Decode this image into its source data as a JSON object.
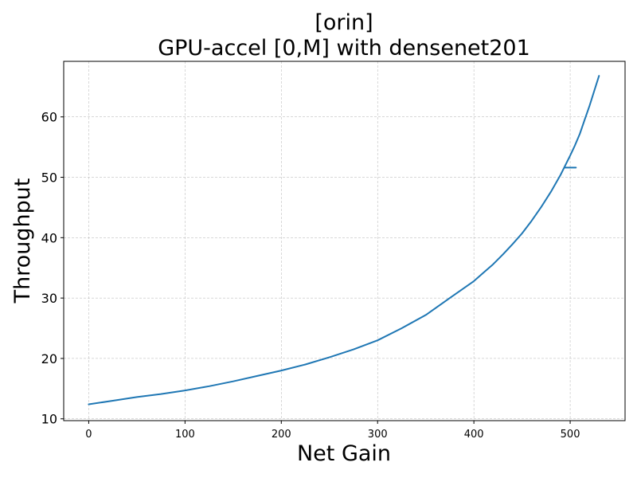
{
  "chart_data": {
    "type": "line",
    "title_line1": "[orin]",
    "title_line2": "GPU-accel [0,M] with densenet201",
    "xlabel": "Net Gain",
    "ylabel": "Throughput",
    "xlim": [
      -26,
      557
    ],
    "ylim": [
      9.7,
      69.2
    ],
    "xticks": [
      0,
      100,
      200,
      300,
      400,
      500
    ],
    "yticks": [
      10,
      20,
      30,
      40,
      50,
      60
    ],
    "grid": true,
    "line_color": "#1f77b4",
    "series": [
      {
        "x": [
          0,
          25,
          50,
          75,
          100,
          125,
          150,
          175,
          200,
          225,
          250,
          275,
          300,
          325,
          350,
          375,
          400,
          410,
          420,
          430,
          440,
          450,
          460,
          470,
          480,
          490,
          500,
          505,
          510,
          515,
          520,
          525,
          530
        ],
        "values": [
          12.4,
          13.0,
          13.6,
          14.1,
          14.7,
          15.4,
          16.2,
          17.1,
          18.0,
          19.0,
          20.2,
          21.5,
          23.0,
          25.0,
          27.2,
          30.0,
          32.8,
          34.2,
          35.6,
          37.2,
          38.9,
          40.7,
          42.8,
          45.1,
          47.6,
          50.4,
          53.6,
          55.3,
          57.2,
          59.5,
          61.8,
          64.3,
          66.8
        ]
      },
      {
        "x": [
          494,
          500,
          506
        ],
        "values": [
          51.6,
          51.6,
          51.6
        ]
      }
    ]
  }
}
